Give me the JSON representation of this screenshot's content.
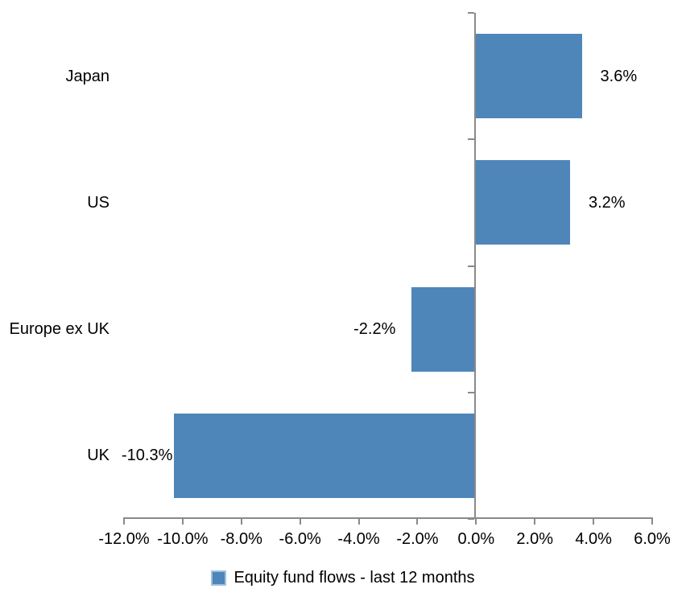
{
  "chart_data": {
    "type": "bar",
    "orientation": "horizontal",
    "categories": [
      "Japan",
      "US",
      "Europe ex UK",
      "UK"
    ],
    "values": [
      3.6,
      3.2,
      -2.2,
      -10.3
    ],
    "data_labels": [
      "3.6%",
      "3.2%",
      "-2.2%",
      "-10.3%"
    ],
    "series": [
      {
        "name": "Equity fund flows - last 12 months",
        "values": [
          3.6,
          3.2,
          -2.2,
          -10.3
        ]
      }
    ],
    "title": "",
    "xlabel": "",
    "ylabel": "",
    "xlim": [
      -12,
      6
    ],
    "x_tick_step": 2,
    "x_tick_labels": [
      "-12.0%",
      "-10.0%",
      "-8.0%",
      "-6.0%",
      "-4.0%",
      "-2.0%",
      "0.0%",
      "2.0%",
      "4.0%",
      "6.0%"
    ],
    "grid": false,
    "legend_position": "bottom",
    "colors": {
      "bar": "#4e86ba",
      "axis": "#8a8a8a",
      "text": "#000000",
      "legend_swatch_border": "#9ec2de",
      "background": "#ffffff"
    }
  },
  "legend": {
    "label": "Equity fund flows - last 12 months"
  }
}
